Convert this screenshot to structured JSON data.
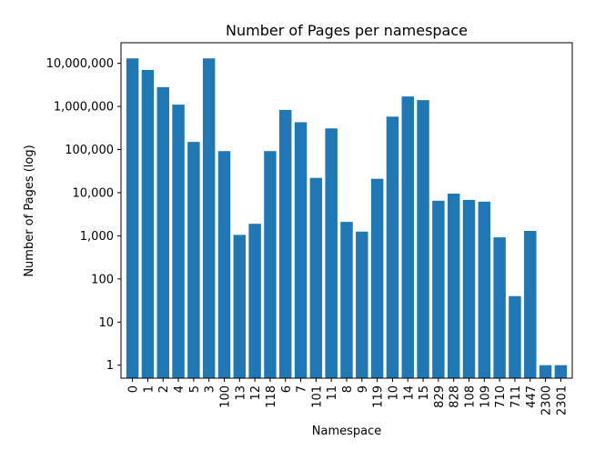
{
  "chart_data": {
    "type": "bar",
    "title": "Number of Pages per namespace",
    "xlabel": "Namespace",
    "ylabel": "Number of Pages (log)",
    "yscale": "log",
    "ylim": [
      0.5,
      30000000
    ],
    "yticks": [
      1,
      10,
      100,
      1000,
      10000,
      100000,
      1000000,
      10000000
    ],
    "ytick_labels": [
      "1",
      "10",
      "100",
      "1,000",
      "10,000",
      "100,000",
      "1,000,000",
      "10,000,000"
    ],
    "categories": [
      "0",
      "1",
      "2",
      "4",
      "5",
      "3",
      "100",
      "13",
      "12",
      "118",
      "6",
      "7",
      "101",
      "11",
      "8",
      "9",
      "119",
      "10",
      "14",
      "15",
      "829",
      "828",
      "108",
      "109",
      "710",
      "711",
      "447",
      "2300",
      "2301"
    ],
    "values": [
      13000000,
      7000000,
      2800000,
      1100000,
      150000,
      13000000,
      92000,
      1050,
      1900,
      92000,
      830000,
      430000,
      22000,
      310000,
      2100,
      1250,
      21000,
      580000,
      1700000,
      1400000,
      6500,
      9500,
      6800,
      6200,
      920,
      40,
      1300,
      1,
      1
    ],
    "bar_color": "#1f77b4",
    "grid": false,
    "legend": "none"
  }
}
